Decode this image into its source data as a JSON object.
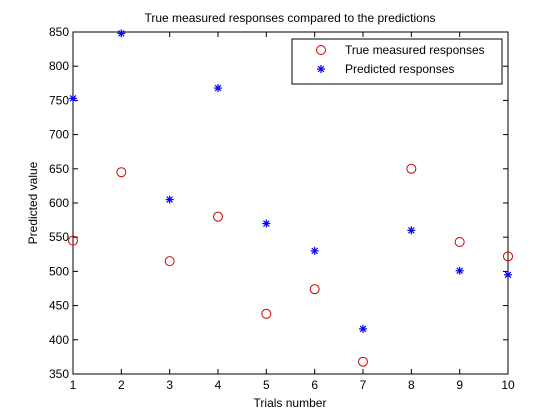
{
  "chart_data": {
    "type": "scatter",
    "title": "True measured responses compared to the predictions",
    "xlabel": "Trials number",
    "ylabel": "Predicted value",
    "xlim": [
      1,
      10
    ],
    "ylim": [
      350,
      850
    ],
    "xticks": [
      1,
      2,
      3,
      4,
      5,
      6,
      7,
      8,
      9,
      10
    ],
    "yticks": [
      350,
      400,
      450,
      500,
      550,
      600,
      650,
      700,
      750,
      800,
      850
    ],
    "grid": false,
    "legend_position": "top-right",
    "series": [
      {
        "name": "True measured responses",
        "marker": "circle",
        "color": "#cc0000",
        "x": [
          1,
          2,
          3,
          4,
          5,
          6,
          7,
          8,
          9,
          10
        ],
        "y": [
          545,
          645,
          515,
          580,
          438,
          474,
          368,
          650,
          543,
          522
        ]
      },
      {
        "name": "Predicted responses",
        "marker": "asterisk",
        "color": "#0000ff",
        "x": [
          1,
          2,
          3,
          4,
          5,
          6,
          7,
          8,
          9,
          10
        ],
        "y": [
          753,
          848,
          605,
          768,
          570,
          530,
          416,
          560,
          501,
          495
        ]
      }
    ]
  }
}
